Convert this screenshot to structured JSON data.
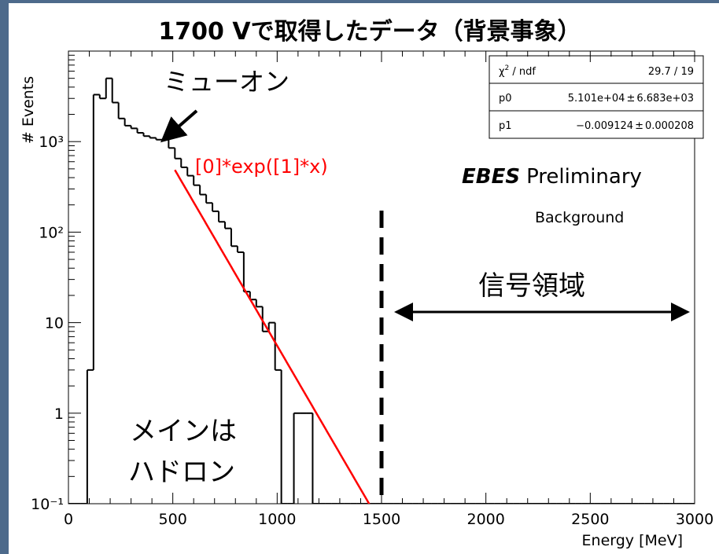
{
  "chart_data": {
    "type": "histogram",
    "title": "1700 Vで取得したデータ（背景事象）",
    "x_label": "Energy [MeV]",
    "y_label": "# Events",
    "log_y": true,
    "color": "#000000",
    "bins": [
      0,
      30,
      60,
      90,
      120,
      150,
      180,
      210,
      240,
      270,
      300,
      330,
      360,
      390,
      420,
      450,
      480,
      510,
      540,
      570,
      600,
      630,
      660,
      690,
      720,
      750,
      780,
      810,
      840,
      870,
      900,
      930,
      960,
      990,
      1020,
      1050,
      1080,
      1110,
      1140,
      1170,
      1200,
      1230,
      1260,
      1290,
      1320,
      1350,
      1380,
      1410,
      1440,
      1470,
      1500,
      1530,
      1560,
      1590,
      1620,
      1650,
      1680,
      1710,
      1740,
      1770,
      1800,
      1830,
      1860,
      1890,
      1920,
      1950,
      1980,
      2010,
      2040,
      2070,
      2100,
      2130,
      2160,
      2190,
      2220,
      2250,
      2280,
      2310,
      2340,
      2370,
      2400,
      2430,
      2460,
      2490,
      2520,
      2550,
      2580,
      2610,
      2640,
      2670,
      2700,
      2730,
      2760,
      2790,
      2820,
      2850,
      2880,
      2910,
      2940,
      2970,
      3000
    ],
    "counts": [
      0,
      0,
      0,
      3,
      3300,
      3000,
      5000,
      2700,
      1800,
      1500,
      1400,
      1250,
      1150,
      1100,
      1050,
      1050,
      850,
      650,
      520,
      420,
      330,
      260,
      210,
      170,
      130,
      110,
      70,
      60,
      22,
      18,
      15,
      8,
      10,
      3,
      0,
      0,
      1,
      1,
      1,
      0,
      0,
      0,
      0,
      0,
      0,
      0,
      0,
      0,
      0,
      0,
      0,
      0,
      0,
      0,
      0,
      0,
      0,
      0,
      0,
      0,
      0,
      0,
      0,
      0,
      0,
      0,
      0,
      0,
      0,
      0,
      0,
      0,
      0,
      0,
      0,
      0,
      0,
      0,
      0,
      0,
      0,
      0,
      0,
      0,
      0,
      0,
      0,
      0,
      0,
      0,
      0,
      0,
      0,
      0,
      0,
      0,
      0,
      0,
      0,
      0
    ],
    "xlim": [
      0,
      3000
    ],
    "xticks": [
      0,
      500,
      1000,
      1500,
      2000,
      2500,
      3000
    ],
    "ylim": [
      0.1,
      10000
    ],
    "yticks": [
      {
        "value": 0.1,
        "label": "10⁻¹"
      },
      1,
      10,
      {
        "value": 100,
        "label": "10²"
      },
      {
        "value": 1000,
        "label": "10³"
      }
    ],
    "fit": {
      "formula": "[0]*exp([1]*x)",
      "color": "#ff0000",
      "range": [
        510,
        1500
      ]
    },
    "stats": [
      {
        "name": [
          "χ",
          "2",
          " / ndf"
        ],
        "value": "29.7 / 19"
      },
      {
        "name": "p0",
        "value": {
          "value": 51010,
          "label": "5.101e+04"
        },
        "pm": "±",
        "error": {
          "value": 6683,
          "label": "6.683e+03"
        }
      },
      {
        "name": "p1",
        "value": {
          "value": -0.009124,
          "label": "−0.009124"
        },
        "pm": "±",
        "error": {
          "value": 0.000208,
          "label": "0.000208"
        }
      }
    ],
    "annotations": {
      "muon": "ミューオン",
      "experiment": "EBES",
      "preliminary": "Preliminary",
      "sample": "Background",
      "signal_region": {
        "label": "信号領域",
        "x": [
          1500,
          3000
        ]
      },
      "hadron": [
        "メインは",
        "ハドロン"
      ]
    }
  }
}
